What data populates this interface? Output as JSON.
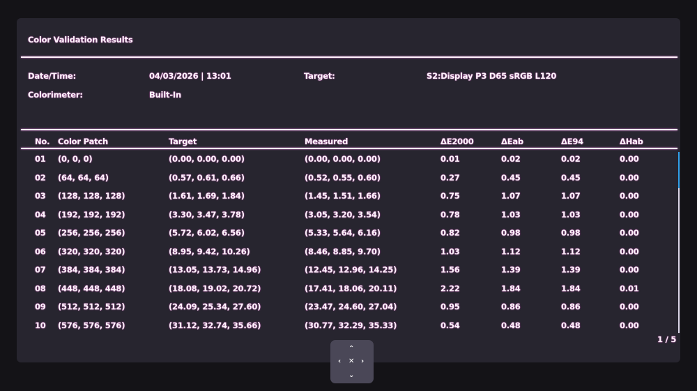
{
  "title": "Color Validation Results",
  "info": {
    "datetime_label": "Date/Time:",
    "datetime_value": "04/03/2026 | 13:01",
    "target_label": "Target:",
    "target_value": "S2:Display P3 D65 sRGB L120",
    "colorimeter_label": "Colorimeter:",
    "colorimeter_value": "Built-In"
  },
  "table": {
    "headers": [
      "No.",
      "Color Patch",
      "Target",
      "Measured",
      "ΔE2000",
      "ΔEab",
      "ΔE94",
      "ΔHab"
    ],
    "rows": [
      [
        "01",
        "(0, 0, 0)",
        "(0.00, 0.00, 0.00)",
        "(0.00, 0.00, 0.00)",
        "0.01",
        "0.02",
        "0.02",
        "0.00"
      ],
      [
        "02",
        "(64, 64, 64)",
        "(0.57, 0.61, 0.66)",
        "(0.52, 0.55, 0.60)",
        "0.27",
        "0.45",
        "0.45",
        "0.00"
      ],
      [
        "03",
        "(128, 128, 128)",
        "(1.61, 1.69, 1.84)",
        "(1.45, 1.51, 1.66)",
        "0.75",
        "1.07",
        "1.07",
        "0.00"
      ],
      [
        "04",
        "(192, 192, 192)",
        "(3.30, 3.47, 3.78)",
        "(3.05, 3.20, 3.54)",
        "0.78",
        "1.03",
        "1.03",
        "0.00"
      ],
      [
        "05",
        "(256, 256, 256)",
        "(5.72, 6.02, 6.56)",
        "(5.33, 5.64, 6.16)",
        "0.82",
        "0.98",
        "0.98",
        "0.00"
      ],
      [
        "06",
        "(320, 320, 320)",
        "(8.95, 9.42, 10.26)",
        "(8.46, 8.85, 9.70)",
        "1.03",
        "1.12",
        "1.12",
        "0.00"
      ],
      [
        "07",
        "(384, 384, 384)",
        "(13.05, 13.73, 14.96)",
        "(12.45, 12.96, 14.25)",
        "1.56",
        "1.39",
        "1.39",
        "0.00"
      ],
      [
        "08",
        "(448, 448, 448)",
        "(18.08, 19.02, 20.72)",
        "(17.41, 18.06, 20.11)",
        "2.22",
        "1.84",
        "1.84",
        "0.01"
      ],
      [
        "09",
        "(512, 512, 512)",
        "(24.09, 25.34, 27.60)",
        "(23.47, 24.60, 27.04)",
        "0.95",
        "0.86",
        "0.86",
        "0.00"
      ],
      [
        "10",
        "(576, 576, 576)",
        "(31.12, 32.74, 35.66)",
        "(30.77, 32.29, 35.33)",
        "0.54",
        "0.48",
        "0.48",
        "0.00"
      ]
    ]
  },
  "pagination": {
    "page": "1 / 5",
    "current": 1,
    "total": 5
  },
  "colors": {
    "panel": "#27252f",
    "scroll_thumb": "#2f9fe8",
    "text": "#fbf4fa"
  },
  "nav_icon": "joystick-navigation-icon"
}
